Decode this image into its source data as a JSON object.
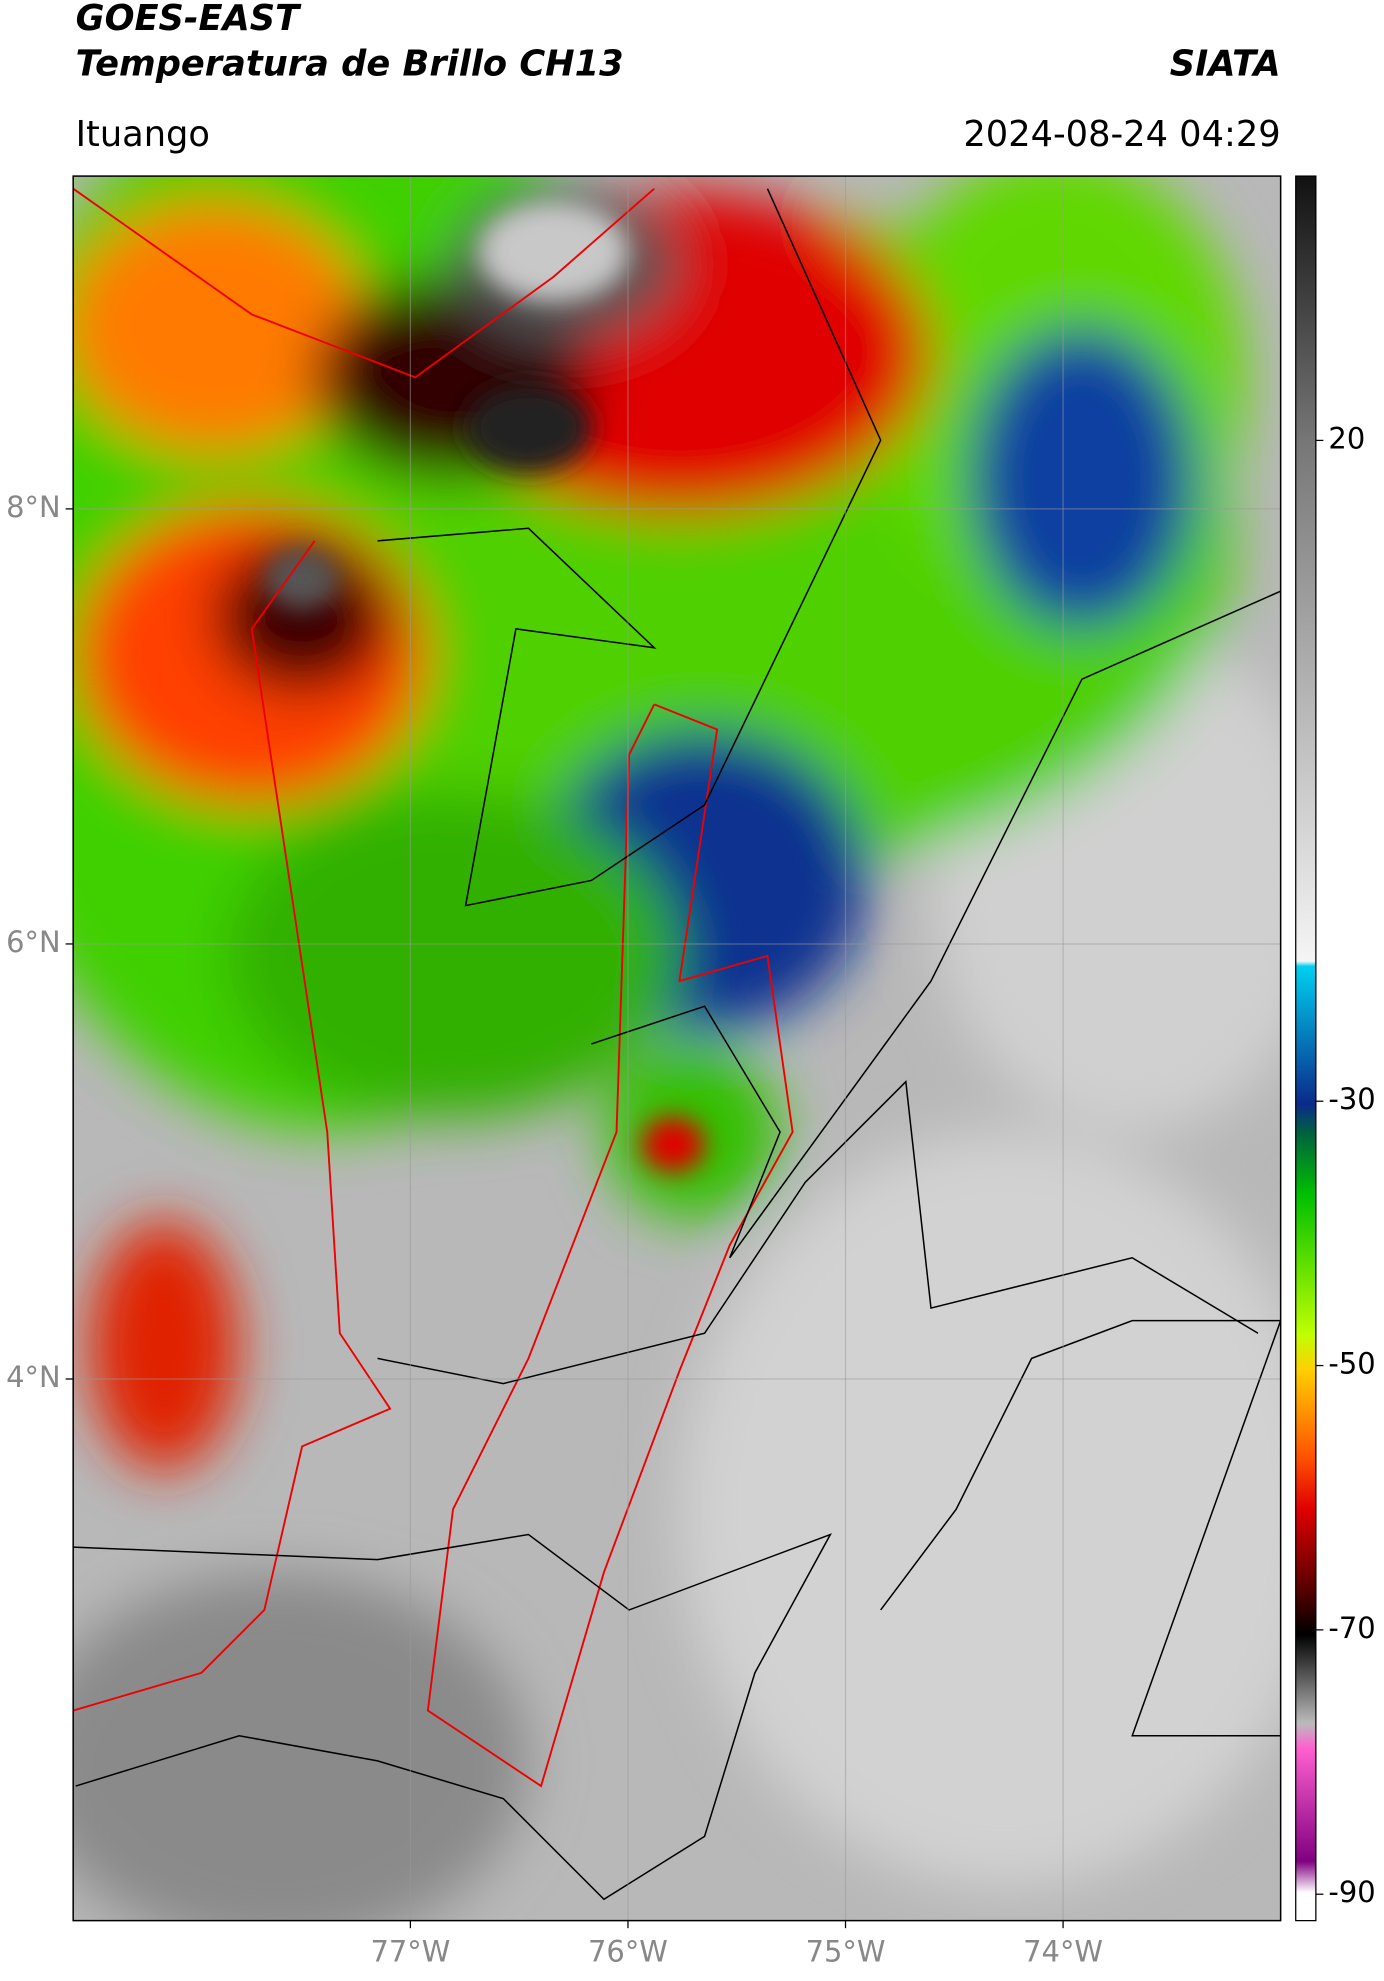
{
  "header": {
    "title": "GOES-EAST",
    "subtitle": "Temperatura de Brillo CH13",
    "source": "SIATA",
    "location": "Ituango",
    "datetime": "2024-08-24 04:29"
  },
  "map": {
    "xlim": [
      -78.55,
      -73.0
    ],
    "ylim": [
      1.51,
      9.53
    ],
    "xticks": [
      {
        "value": -77,
        "label": "77°W"
      },
      {
        "value": -76,
        "label": "76°W"
      },
      {
        "value": -75,
        "label": "75°W"
      },
      {
        "value": -74,
        "label": "74°W"
      }
    ],
    "yticks": [
      {
        "value": 8,
        "label": "8°N"
      },
      {
        "value": 6,
        "label": "6°N"
      },
      {
        "value": 4,
        "label": "4°N"
      }
    ],
    "grid": true
  },
  "colorbar": {
    "lim": [
      -92,
      40
    ],
    "ticks": [
      20,
      -30,
      -50,
      -70,
      -90
    ]
  }
}
